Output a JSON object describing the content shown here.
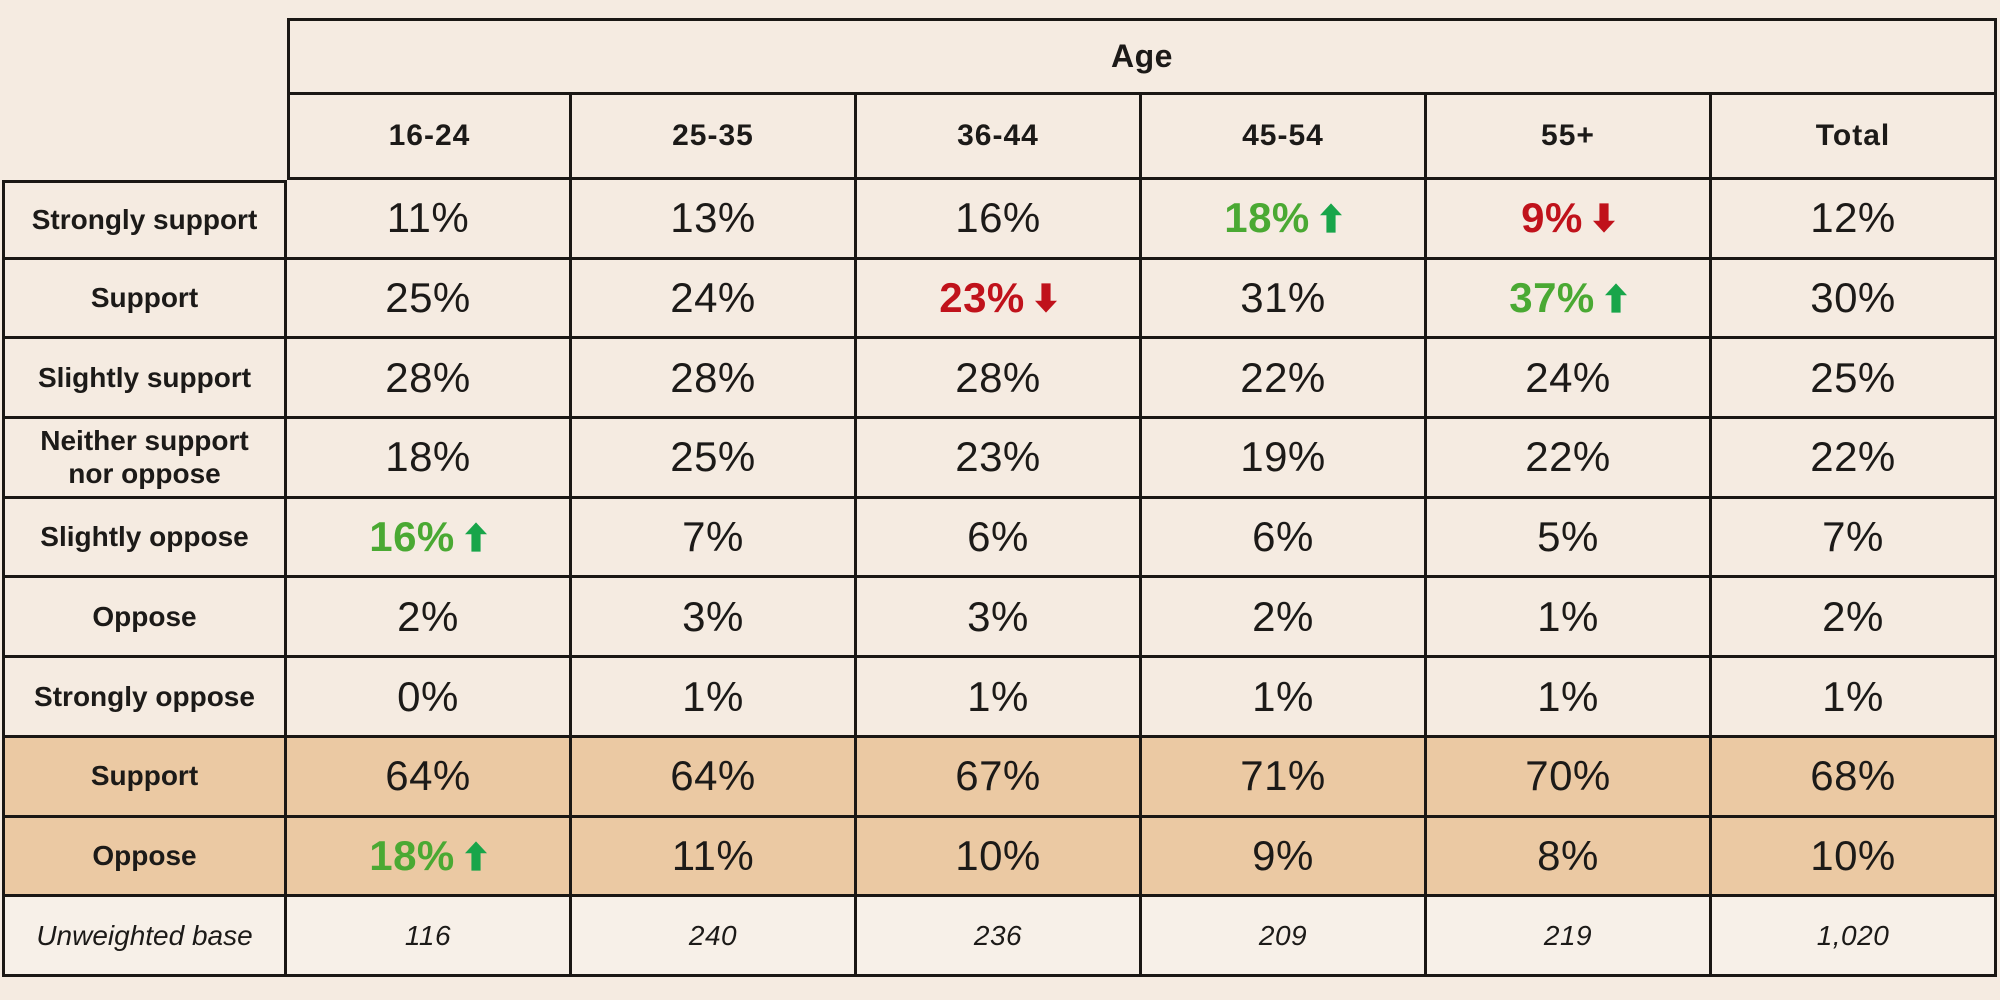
{
  "colors": {
    "background": "#f5ebe1",
    "highlight": "#ebc9a3",
    "base_row_bg": "#f7f0e8",
    "border": "#1a1714",
    "text": "#1c1a18",
    "green_text": "#4aa933",
    "green_arrow": "#18a54a",
    "red": "#c0121b"
  },
  "table": {
    "group_header": "Age",
    "columns": [
      "16-24",
      "25-35",
      "36-44",
      "45-54",
      "55+",
      "Total"
    ],
    "rows": [
      {
        "label": "Strongly support",
        "values": [
          {
            "text": "11%"
          },
          {
            "text": "13%"
          },
          {
            "text": "16%"
          },
          {
            "text": "18%",
            "color": "green",
            "arrow": "up"
          },
          {
            "text": "9%",
            "color": "red",
            "arrow": "down"
          },
          {
            "text": "12%"
          }
        ]
      },
      {
        "label": "Support",
        "values": [
          {
            "text": "25%"
          },
          {
            "text": "24%"
          },
          {
            "text": "23%",
            "color": "red",
            "arrow": "down"
          },
          {
            "text": "31%"
          },
          {
            "text": "37%",
            "color": "green",
            "arrow": "up"
          },
          {
            "text": "30%"
          }
        ]
      },
      {
        "label": "Slightly support",
        "values": [
          {
            "text": "28%"
          },
          {
            "text": "28%"
          },
          {
            "text": "28%"
          },
          {
            "text": "22%"
          },
          {
            "text": "24%"
          },
          {
            "text": "25%"
          }
        ]
      },
      {
        "label": "Neither support nor oppose",
        "values": [
          {
            "text": "18%"
          },
          {
            "text": "25%"
          },
          {
            "text": "23%"
          },
          {
            "text": "19%"
          },
          {
            "text": "22%"
          },
          {
            "text": "22%"
          }
        ]
      },
      {
        "label": "Slightly oppose",
        "values": [
          {
            "text": "16%",
            "color": "green",
            "arrow": "up"
          },
          {
            "text": "7%"
          },
          {
            "text": "6%"
          },
          {
            "text": "6%"
          },
          {
            "text": "5%"
          },
          {
            "text": "7%"
          }
        ]
      },
      {
        "label": "Oppose",
        "values": [
          {
            "text": "2%"
          },
          {
            "text": "3%"
          },
          {
            "text": "3%"
          },
          {
            "text": "2%"
          },
          {
            "text": "1%"
          },
          {
            "text": "2%"
          }
        ]
      },
      {
        "label": "Strongly oppose",
        "values": [
          {
            "text": "0%"
          },
          {
            "text": "1%"
          },
          {
            "text": "1%"
          },
          {
            "text": "1%"
          },
          {
            "text": "1%"
          },
          {
            "text": "1%"
          }
        ]
      },
      {
        "label": "Support",
        "highlight": true,
        "values": [
          {
            "text": "64%"
          },
          {
            "text": "64%"
          },
          {
            "text": "67%"
          },
          {
            "text": "71%"
          },
          {
            "text": "70%"
          },
          {
            "text": "68%"
          }
        ]
      },
      {
        "label": "Oppose",
        "highlight": true,
        "values": [
          {
            "text": "18%",
            "color": "green",
            "arrow": "up"
          },
          {
            "text": "11%"
          },
          {
            "text": "10%"
          },
          {
            "text": "9%"
          },
          {
            "text": "8%"
          },
          {
            "text": "10%"
          }
        ]
      },
      {
        "label": "Unweighted base",
        "italic": true,
        "values": [
          {
            "text": "116"
          },
          {
            "text": "240"
          },
          {
            "text": "236"
          },
          {
            "text": "209"
          },
          {
            "text": "219"
          },
          {
            "text": "1,020"
          }
        ]
      }
    ]
  },
  "chart_data": {
    "type": "table",
    "title": "Age",
    "columns": [
      "16-24",
      "25-35",
      "36-44",
      "45-54",
      "55+",
      "Total"
    ],
    "row_labels": [
      "Strongly support",
      "Support",
      "Slightly support",
      "Neither support nor oppose",
      "Slightly oppose",
      "Oppose",
      "Strongly oppose",
      "Support (net)",
      "Oppose (net)",
      "Unweighted base"
    ],
    "values": [
      [
        11,
        13,
        16,
        18,
        9,
        12
      ],
      [
        25,
        24,
        23,
        31,
        37,
        30
      ],
      [
        28,
        28,
        28,
        22,
        24,
        25
      ],
      [
        18,
        25,
        23,
        19,
        22,
        22
      ],
      [
        16,
        7,
        6,
        6,
        5,
        7
      ],
      [
        2,
        3,
        3,
        2,
        1,
        2
      ],
      [
        0,
        1,
        1,
        1,
        1,
        1
      ],
      [
        64,
        64,
        67,
        71,
        70,
        68
      ],
      [
        18,
        11,
        10,
        9,
        8,
        10
      ],
      [
        116,
        240,
        236,
        209,
        219,
        1020
      ]
    ],
    "units": "percent, except Unweighted base row (counts)",
    "highlighted_rows": [
      "Support (net)",
      "Oppose (net)"
    ],
    "significance_markers": [
      {
        "row": "Strongly support",
        "column": "45-54",
        "direction": "up",
        "color": "green"
      },
      {
        "row": "Strongly support",
        "column": "55+",
        "direction": "down",
        "color": "red"
      },
      {
        "row": "Support",
        "column": "36-44",
        "direction": "down",
        "color": "red"
      },
      {
        "row": "Support",
        "column": "55+",
        "direction": "up",
        "color": "green"
      },
      {
        "row": "Slightly oppose",
        "column": "16-24",
        "direction": "up",
        "color": "green"
      },
      {
        "row": "Oppose (net)",
        "column": "16-24",
        "direction": "up",
        "color": "green"
      }
    ]
  }
}
